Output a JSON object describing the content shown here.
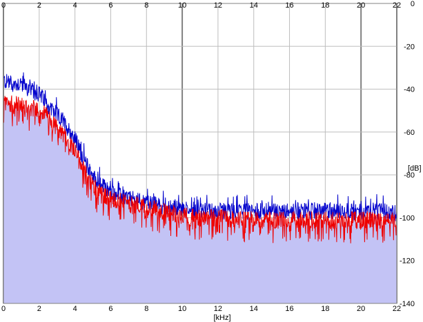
{
  "chart_data": {
    "type": "line",
    "xlabel": "[kHz]",
    "ylabel": "[dB]",
    "xlim": [
      0,
      22
    ],
    "ylim": [
      -140,
      0
    ],
    "x_ticks": [
      "0",
      "2",
      "4",
      "6",
      "8",
      "10",
      "12",
      "14",
      "16",
      "18",
      "20",
      "22"
    ],
    "y_ticks": [
      "0",
      "-20",
      "-40",
      "-60",
      "-80",
      "-100",
      "-120",
      "-140"
    ],
    "x_tick_values": [
      0,
      2,
      4,
      6,
      8,
      10,
      12,
      14,
      16,
      18,
      20,
      22
    ],
    "y_tick_values": [
      0,
      -20,
      -40,
      -60,
      -80,
      -100,
      -120,
      -140
    ],
    "grid": true,
    "colors": {
      "fill": "#c3c3f5",
      "blue": "#0000cc",
      "red": "#ee0000",
      "grid": "#bdbdbd",
      "major_grid": "#808080"
    },
    "series": [
      {
        "color": "#0000cc",
        "x": [
          0,
          0.5,
          1,
          1.5,
          2,
          2.5,
          3,
          3.5,
          4,
          4.5,
          5,
          5.5,
          6,
          6.5,
          7,
          7.5,
          8,
          8.5,
          9,
          9.5,
          10,
          11,
          12,
          13,
          14,
          15,
          16,
          17,
          18,
          19,
          20,
          21,
          22
        ],
        "values": [
          -36,
          -38,
          -37,
          -41,
          -42,
          -48,
          -52,
          -57,
          -63,
          -73,
          -81,
          -85,
          -88,
          -90,
          -91,
          -92,
          -93,
          -94,
          -95,
          -96,
          -96,
          -97,
          -97,
          -97,
          -97,
          -97,
          -97,
          -97,
          -97,
          -97,
          -97,
          -97,
          -98
        ]
      },
      {
        "color": "#ee0000",
        "x": [
          0,
          0.5,
          1,
          1.5,
          2,
          2.5,
          3,
          3.5,
          4,
          4.5,
          5,
          5.5,
          6,
          6.5,
          7,
          7.5,
          8,
          8.5,
          9,
          9.5,
          10,
          11,
          12,
          13,
          14,
          15,
          16,
          17,
          18,
          19,
          20,
          21,
          22
        ],
        "values": [
          -46,
          -47,
          -47,
          -49,
          -49,
          -53,
          -58,
          -63,
          -68,
          -78,
          -85,
          -89,
          -91,
          -92,
          -94,
          -94,
          -95,
          -96,
          -97,
          -98,
          -99,
          -100,
          -100,
          -101,
          -101,
          -101,
          -101,
          -101,
          -101,
          -101,
          -101,
          -101,
          -101
        ]
      }
    ]
  }
}
